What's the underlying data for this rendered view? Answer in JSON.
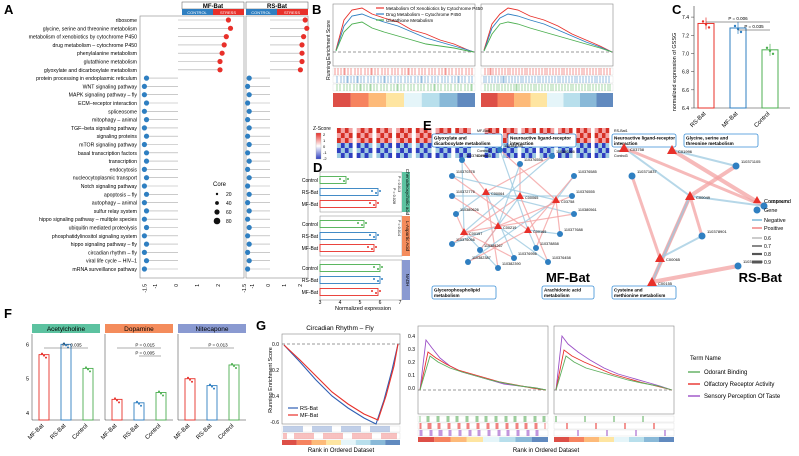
{
  "panels": {
    "A": {
      "letter": "A",
      "header_mf": "MF-Bat",
      "header_rs": "RS-Bat",
      "control_label": "CONTROL",
      "stress_label": "STRESS",
      "pathways": [
        "ribosome",
        "glycine, serine and threonine metabolism",
        "metabolism of xenobiotics by cytochrome P450",
        "drug metabolism – cytochrome P450",
        "phenylalanine metabolism",
        "glutathione metabolism",
        "glyoxylate and dicarboxylate metabolism",
        "protein processing in endoplasmic reticulum",
        "WNT signaling pathway",
        "MAPK signaling pathway – fly",
        "ECM–receptor interaction",
        "spliceosome",
        "mitophagy – animal",
        "TGF–beta signaling pathway",
        "signaling proteins",
        "mTOR signaling pathway",
        "basal transcription factors",
        "transcription",
        "endocytosis",
        "nucleocytoplasmic transport",
        "Notch signaling pathway",
        "apoptosis – fly",
        "autophagy – animal",
        "sulfur relay system",
        "hippo signaling pathway – multiple species",
        "ubiquitin mediated proteolysis",
        "phosphatidylinositol signaling system",
        "hippo signaling pathway – fly",
        "circadian rhythm – fly",
        "viral life cycle – HIV–1",
        "mRNA surveillance pathway"
      ],
      "mf_values": [
        2.4,
        2.5,
        2.3,
        2.2,
        2.1,
        2.0,
        2.0,
        -1.5,
        -1.6,
        -1.6,
        -1.5,
        -1.6,
        -1.5,
        -1.6,
        -1.5,
        -1.6,
        -1.5,
        -1.5,
        -1.6,
        -1.5,
        -1.6,
        -1.5,
        -1.6,
        -1.5,
        -1.6,
        -1.5,
        -1.6,
        -1.5,
        -1.6,
        -1.5,
        -1.6
      ],
      "rs_values": [
        2.2,
        2.3,
        2.1,
        2.0,
        2.0,
        2.0,
        1.9,
        -1.3,
        -1.4,
        -1.3,
        -1.4,
        -1.3,
        -1.4,
        -1.3,
        -1.4,
        -1.3,
        -1.4,
        -1.3,
        -1.4,
        -1.3,
        -1.4,
        -1.3,
        -1.4,
        -1.3,
        -1.4,
        -1.3,
        -1.4,
        -1.3,
        -1.4,
        -1.3,
        -1.4
      ],
      "x_ticks": [
        "-1.5",
        "-1",
        "0",
        "1",
        "2"
      ],
      "legend_title": "Core",
      "legend_sizes": [
        "20",
        "40",
        "60",
        "80"
      ],
      "colors": {
        "positive": "#e8302a",
        "negative": "#2f7fc1",
        "control_bar": "#2f7fc1",
        "stress_bar": "#e8302a"
      }
    },
    "B": {
      "letter": "B",
      "y_label": "Running Enrichment Score",
      "legend": [
        "Metabolism Of Xenobiotics by Cytochrome P450",
        "Drug Metabolism – Cytochrome P450",
        "Glutathione Metabolism"
      ],
      "zscore_label": "Z-Score",
      "zscore_ticks": [
        "2",
        "1",
        "0",
        "-1",
        "-2"
      ],
      "sample_rows": [
        "MF-Bat1",
        "MF-Bat2",
        "MF-Bat3",
        "Control1",
        "Control2",
        "Control3"
      ],
      "sample_rows_right": [
        "RS-Bat1",
        "RS-Bat2",
        "RS-Bat3",
        "Control1",
        "Control2",
        "Control3"
      ]
    },
    "C": {
      "letter": "C",
      "y_label": "normalized expression of GSSG",
      "y_ticks": [
        "7.4",
        "7.2",
        "7.0",
        "6.8",
        "6.6",
        "6.4"
      ],
      "categories": [
        "RS-Bat",
        "MF-Bat",
        "Control"
      ],
      "p1": "P = 0.006",
      "p2": "P = 0.035",
      "chart_data": {
        "type": "bar",
        "categories": [
          "RS-Bat",
          "MF-Bat",
          "Control"
        ],
        "values": [
          7.33,
          7.28,
          7.04
        ],
        "ylim": [
          6.4,
          7.5
        ],
        "ylabel": "normalized expression of GSSG"
      }
    },
    "D": {
      "letter": "D",
      "x_label": "Normalized expression",
      "x_ticks": [
        "3",
        "4",
        "5",
        "6",
        "7"
      ],
      "groups": [
        {
          "label": "Chenodeoxycholic acid",
          "rows": [
            "Control",
            "RS-Bat",
            "MF-Bat"
          ],
          "p1": "P = 0.013",
          "p2": "P = 0.028"
        },
        {
          "label": "L-Aspartic Acid",
          "rows": [
            "Control",
            "RS-Bat",
            "MF-Bat"
          ],
          "p1": "P = 0.014",
          "p2": ""
        },
        {
          "label": "NADH",
          "rows": [
            "Control",
            "RS-Bat",
            "MF-Bat"
          ],
          "p1": "",
          "p2": ""
        }
      ],
      "chart_data": {
        "type": "bar",
        "orientation": "horizontal",
        "series": [
          {
            "name": "Chenodeoxycholic acid",
            "categories": [
              "Control",
              "RS-Bat",
              "MF-Bat"
            ],
            "values": [
              4.3,
              5.9,
              5.8
            ]
          },
          {
            "name": "L-Aspartic Acid",
            "categories": [
              "Control",
              "RS-Bat",
              "MF-Bat"
            ],
            "values": [
              5.2,
              5.8,
              5.7
            ]
          },
          {
            "name": "NADH",
            "categories": [
              "Control",
              "RS-Bat",
              "MF-Bat"
            ],
            "values": [
              6.0,
              6.0,
              5.9
            ]
          }
        ],
        "xlim": [
          3,
          7
        ]
      }
    },
    "E": {
      "letter": "E",
      "mf_title": "MF-Bat",
      "rs_title": "RS-Bat",
      "mf_pathways": [
        "Glyoxylate and dicarboxylate metabolism",
        "Neuroactive ligand-receptor interaction",
        "Glycerophospholipid metabolism",
        "Arachidonic acid metabolism"
      ],
      "rs_pathways": [
        "Neuroactive ligand-receptor interaction",
        "Glycine, serine and threonine metabolism",
        "Cysteine and methionine metabolism"
      ],
      "mf_genes": [
        "110376079",
        "110370378",
        "110372776",
        "110380626",
        "110384095",
        "110376555",
        "110380266",
        "110376585",
        "110376555",
        "110380561",
        "110378858",
        "110376458",
        "110382390",
        "110382387",
        "110384267",
        "110376956",
        "110377688",
        "110376056"
      ],
      "mf_compounds": [
        "C00064",
        "C00065",
        "C03758",
        "C00157",
        "C00219",
        "C00165"
      ],
      "rs_genes": [
        "110371837",
        "110371105",
        "110379273",
        "110378901",
        "110370545"
      ],
      "rs_compounds": [
        "C03758",
        "C01996",
        "C00049",
        "C00065",
        "C00155"
      ],
      "legend": {
        "compound": "Compound",
        "gene": "Gene",
        "negative": "Negative",
        "positive": "Positive",
        "sizes": [
          "0.6",
          "0.7",
          "0.8",
          "0.9"
        ]
      }
    },
    "F": {
      "letter": "F",
      "panels": [
        {
          "title": "Acetylcholine",
          "p_values": [
            "P = 0.035"
          ],
          "categories": [
            "MF-Bat",
            "RS-Bat",
            "Control"
          ],
          "values": [
            5.7,
            6.0,
            5.3
          ],
          "color": "#5cc2a0"
        },
        {
          "title": "Dopamine",
          "p_values": [
            "P = 0.015",
            "P = 0.005"
          ],
          "categories": [
            "MF-Bat",
            "RS-Bat",
            "Control"
          ],
          "values": [
            4.4,
            4.3,
            4.6
          ],
          "color": "#f48c5c"
        },
        {
          "title": "Nitecapone",
          "p_values": [
            "P = 0.013"
          ],
          "categories": [
            "MF-Bat",
            "RS-Bat",
            "Control"
          ],
          "values": [
            5.0,
            4.8,
            5.4
          ],
          "color": "#8a9ad1"
        }
      ],
      "y_ticks": [
        "6",
        "5",
        "4"
      ]
    },
    "G": {
      "letter": "G",
      "title_left": "Circadian Rhythm – Fly",
      "y_label": "Running Enrichment Score",
      "x_label": "Rank in Ordered Dataset",
      "x_label_right": "Rank in Ordered Dataset",
      "left_legend": [
        "RS-Bat",
        "MF-Bat"
      ],
      "left_y_ticks": [
        "0.0",
        "-0.2",
        "-0.4",
        "-0.6"
      ],
      "mid_y_ticks": [
        "0.4",
        "0.3",
        "0.2",
        "0.1",
        "0.0"
      ],
      "term_title": "Term Name",
      "terms": [
        "Odorant Binding",
        "Olfactory Receptor Activity",
        "Sensory Perception Of Taste"
      ],
      "colors": {
        "rs": "#2f5fb3",
        "mf": "#e8302a",
        "odorant": "#5cae5c",
        "olfactory": "#e8302a",
        "taste": "#9b4fc6"
      }
    }
  }
}
